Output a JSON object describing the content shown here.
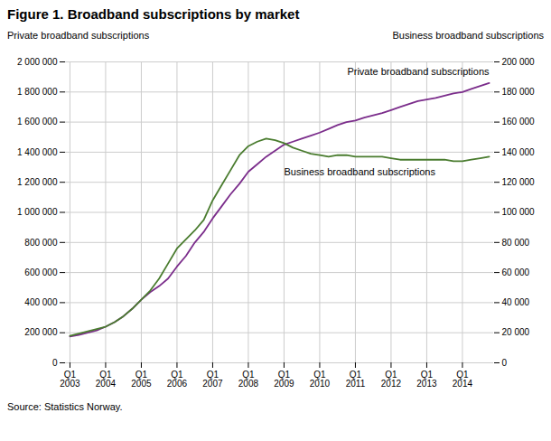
{
  "chart_data": {
    "type": "line",
    "title": "Figure 1. Broadband subscriptions by market",
    "ylabel": "Private broadband subscriptions",
    "y2label": "Business broadband subscriptions",
    "source": "Source: Statistics Norway.",
    "categories": [
      "Q1\n2003",
      null,
      null,
      null,
      "Q1\n2004",
      null,
      null,
      null,
      "Q1\n2005",
      null,
      null,
      null,
      "Q1\n2006",
      null,
      null,
      null,
      "Q1\n2007",
      null,
      null,
      null,
      "Q1\n2008",
      null,
      null,
      null,
      "Q1\n2009",
      null,
      null,
      null,
      "Q1\n2010",
      null,
      null,
      null,
      "Q1\n2011",
      null,
      null,
      null,
      "Q1\n2012",
      null,
      null,
      null,
      "Q1\n2013",
      null,
      null,
      null,
      "Q1\n2014",
      null,
      null,
      null
    ],
    "series": [
      {
        "color": "#7B2D8B",
        "axis": "y",
        "values": [
          175000,
          185000,
          200000,
          215000,
          240000,
          270000,
          310000,
          360000,
          420000,
          470000,
          510000,
          560000,
          640000,
          710000,
          800000,
          870000,
          960000,
          1040000,
          1120000,
          1190000,
          1270000,
          1320000,
          1370000,
          1410000,
          1450000,
          1470000,
          1490000,
          1510000,
          1530000,
          1555000,
          1580000,
          1600000,
          1610000,
          1630000,
          1645000,
          1660000,
          1680000,
          1700000,
          1720000,
          1740000,
          1750000,
          1760000,
          1775000,
          1790000,
          1800000,
          1820000,
          1840000,
          1860000
        ]
      },
      {
        "color": "#4A7C2F",
        "axis": "y2",
        "values": [
          18000,
          19500,
          21000,
          22500,
          24000,
          27000,
          31000,
          36000,
          42000,
          48000,
          56000,
          66000,
          76000,
          82000,
          88000,
          95000,
          108000,
          118000,
          128000,
          138000,
          144000,
          147000,
          149000,
          148000,
          146000,
          143000,
          141000,
          139000,
          138000,
          137000,
          138000,
          138000,
          137000,
          137000,
          137000,
          137000,
          136000,
          135000,
          135000,
          135000,
          135000,
          135000,
          135000,
          134000,
          134000,
          135000,
          136000,
          137000
        ]
      }
    ],
    "annotations": [
      "Private broadband subscriptions",
      "Business broadband subscriptions"
    ],
    "ylim": [
      0,
      2000000
    ],
    "yticks": [
      0,
      {
        "value": 200000,
        "label": "200 000"
      },
      {
        "value": 400000,
        "label": "400 000"
      },
      {
        "value": 600000,
        "label": "600 000"
      },
      {
        "value": 800000,
        "label": "800 000"
      },
      {
        "value": 1000000,
        "label": "1 000 000"
      },
      {
        "value": 1200000,
        "label": "1 200 000"
      },
      {
        "value": 1400000,
        "label": "1 400 000"
      },
      {
        "value": 1600000,
        "label": "1 600 000"
      },
      {
        "value": 1800000,
        "label": "1 800 000"
      },
      {
        "value": 2000000,
        "label": "2 000 000"
      }
    ],
    "y2lim": [
      0,
      200000
    ],
    "y2ticks": [
      0,
      {
        "value": 20000,
        "label": "20 000"
      },
      {
        "value": 40000,
        "label": "40 000"
      },
      {
        "value": 60000,
        "label": "60 000"
      },
      {
        "value": 80000,
        "label": "80 000"
      },
      {
        "value": 100000,
        "label": "100 000"
      },
      {
        "value": 120000,
        "label": "120 000"
      },
      {
        "value": 140000,
        "label": "140 000"
      },
      {
        "value": 160000,
        "label": "160 000"
      },
      {
        "value": 180000,
        "label": "180 000"
      },
      {
        "value": 200000,
        "label": "200 000"
      }
    ],
    "grid": true
  }
}
